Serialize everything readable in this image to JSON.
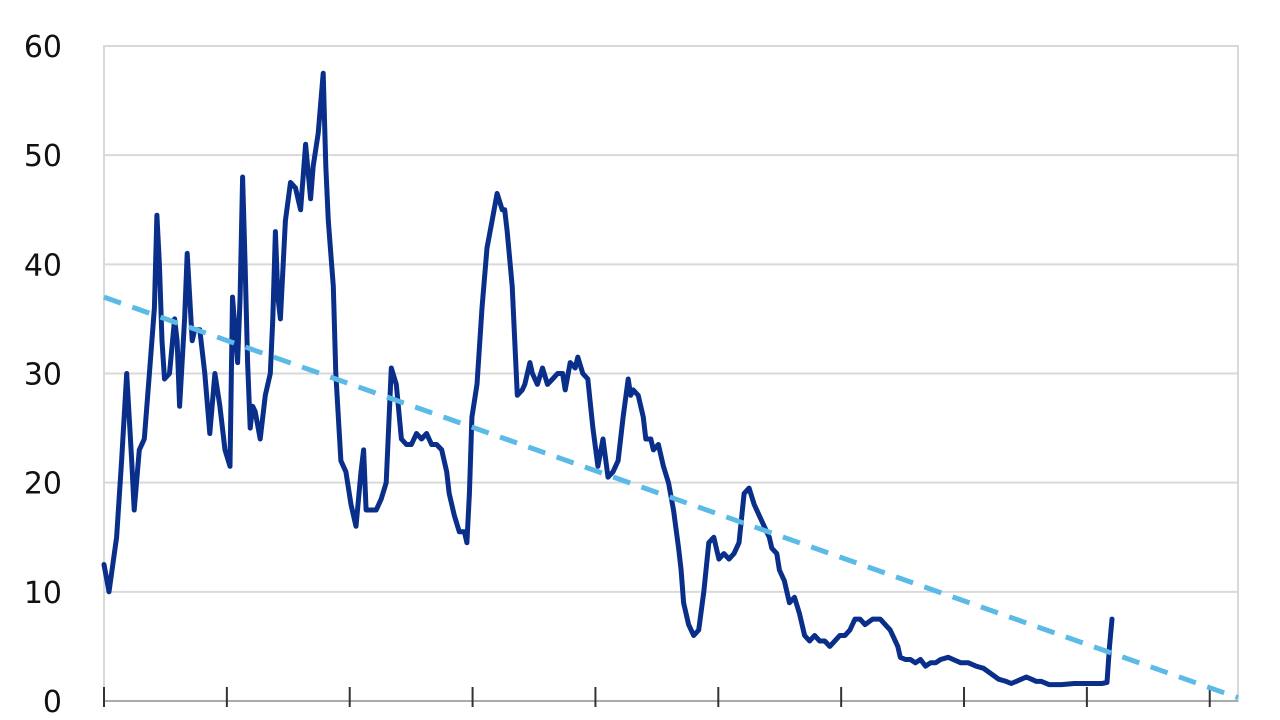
{
  "chart_data": {
    "type": "line",
    "title": "",
    "xlabel": "",
    "ylabel": "",
    "ylim": [
      0,
      60
    ],
    "yticks": [
      0,
      10,
      20,
      30,
      40,
      50,
      60
    ],
    "x_tick_count": 10,
    "grid": "horizontal",
    "legend": "none",
    "x_range": [
      0,
      450
    ],
    "series": [
      {
        "style": "solid",
        "color": "#0a2f8a",
        "points": [
          [
            0,
            12.5
          ],
          [
            2,
            10
          ],
          [
            5,
            15
          ],
          [
            7,
            22
          ],
          [
            9,
            30
          ],
          [
            11,
            22
          ],
          [
            12,
            17.5
          ],
          [
            14,
            23
          ],
          [
            16,
            24
          ],
          [
            18,
            30
          ],
          [
            20,
            36
          ],
          [
            21,
            44.5
          ],
          [
            22,
            40
          ],
          [
            23,
            33
          ],
          [
            24,
            29.5
          ],
          [
            26,
            30
          ],
          [
            28,
            35
          ],
          [
            29,
            33
          ],
          [
            30,
            27
          ],
          [
            32,
            35
          ],
          [
            33,
            41
          ],
          [
            34,
            37
          ],
          [
            35,
            33
          ],
          [
            36,
            34
          ],
          [
            38,
            34
          ],
          [
            40,
            30
          ],
          [
            42,
            24.5
          ],
          [
            44,
            30
          ],
          [
            46,
            27
          ],
          [
            48,
            23
          ],
          [
            50,
            21.5
          ],
          [
            51,
            37
          ],
          [
            53,
            31
          ],
          [
            54,
            37
          ],
          [
            55,
            48
          ],
          [
            56,
            40
          ],
          [
            57,
            31
          ],
          [
            58,
            25
          ],
          [
            59,
            27
          ],
          [
            60,
            26.5
          ],
          [
            62,
            24
          ],
          [
            64,
            28
          ],
          [
            66,
            30
          ],
          [
            67,
            35
          ],
          [
            68,
            43
          ],
          [
            69,
            37
          ],
          [
            70,
            35
          ],
          [
            72,
            44
          ],
          [
            74,
            47.5
          ],
          [
            76,
            47
          ],
          [
            78,
            45
          ],
          [
            80,
            51
          ],
          [
            82,
            46
          ],
          [
            83,
            49
          ],
          [
            85,
            52
          ],
          [
            87,
            57.5
          ],
          [
            88,
            49
          ],
          [
            89,
            44
          ],
          [
            91,
            38
          ],
          [
            92,
            30
          ],
          [
            94,
            22
          ],
          [
            96,
            21
          ],
          [
            98,
            18
          ],
          [
            100,
            16
          ],
          [
            102,
            21
          ],
          [
            103,
            23
          ],
          [
            104,
            17.5
          ],
          [
            106,
            17.5
          ],
          [
            108,
            17.5
          ],
          [
            110,
            18.5
          ],
          [
            112,
            20
          ],
          [
            114,
            30.5
          ],
          [
            116,
            29
          ],
          [
            118,
            24
          ],
          [
            120,
            23.5
          ],
          [
            122,
            23.5
          ],
          [
            124,
            24.5
          ],
          [
            126,
            24
          ],
          [
            128,
            24.5
          ],
          [
            130,
            23.5
          ],
          [
            132,
            23.5
          ],
          [
            134,
            23
          ],
          [
            136,
            21
          ],
          [
            137,
            19
          ],
          [
            139,
            17
          ],
          [
            141,
            15.5
          ],
          [
            143,
            15.5
          ],
          [
            144,
            14.5
          ],
          [
            145,
            19
          ],
          [
            146,
            26
          ],
          [
            148,
            29
          ],
          [
            150,
            36
          ],
          [
            152,
            41.5
          ],
          [
            154,
            44
          ],
          [
            156,
            46.5
          ],
          [
            158,
            45
          ],
          [
            159,
            45
          ],
          [
            160,
            43
          ],
          [
            162,
            38
          ],
          [
            164,
            28
          ],
          [
            166,
            28.5
          ],
          [
            167,
            29
          ],
          [
            169,
            31
          ],
          [
            170,
            30
          ],
          [
            172,
            29
          ],
          [
            174,
            30.5
          ],
          [
            176,
            29
          ],
          [
            178,
            29.5
          ],
          [
            180,
            30
          ],
          [
            182,
            30
          ],
          [
            183,
            28.5
          ],
          [
            185,
            31
          ],
          [
            187,
            30.5
          ],
          [
            188,
            31.5
          ],
          [
            190,
            30
          ],
          [
            192,
            29.5
          ],
          [
            194,
            25
          ],
          [
            196,
            21.5
          ],
          [
            198,
            24
          ],
          [
            200,
            20.5
          ],
          [
            202,
            21
          ],
          [
            204,
            22
          ],
          [
            206,
            26
          ],
          [
            208,
            29.5
          ],
          [
            209,
            28
          ],
          [
            210,
            28.5
          ],
          [
            212,
            28
          ],
          [
            214,
            26
          ],
          [
            215,
            24
          ],
          [
            217,
            24
          ],
          [
            218,
            23
          ],
          [
            220,
            23.5
          ],
          [
            222,
            21.5
          ],
          [
            224,
            20
          ],
          [
            226,
            17.5
          ],
          [
            228,
            14
          ],
          [
            229,
            12
          ],
          [
            230,
            9
          ],
          [
            232,
            7
          ],
          [
            234,
            6
          ],
          [
            236,
            6.5
          ],
          [
            238,
            10
          ],
          [
            240,
            14.5
          ],
          [
            242,
            15
          ],
          [
            244,
            13
          ],
          [
            246,
            13.5
          ],
          [
            248,
            13
          ],
          [
            250,
            13.5
          ],
          [
            252,
            14.5
          ],
          [
            254,
            19
          ],
          [
            256,
            19.5
          ],
          [
            258,
            18
          ],
          [
            260,
            17
          ],
          [
            262,
            16
          ],
          [
            264,
            15
          ],
          [
            265,
            14
          ],
          [
            267,
            13.5
          ],
          [
            268,
            12
          ],
          [
            270,
            11
          ],
          [
            272,
            9
          ],
          [
            274,
            9.5
          ],
          [
            276,
            8
          ],
          [
            278,
            6
          ],
          [
            280,
            5.5
          ],
          [
            282,
            6
          ],
          [
            284,
            5.5
          ],
          [
            286,
            5.5
          ],
          [
            288,
            5
          ],
          [
            290,
            5.5
          ],
          [
            292,
            6
          ],
          [
            294,
            6
          ],
          [
            296,
            6.5
          ],
          [
            298,
            7.5
          ],
          [
            300,
            7.5
          ],
          [
            302,
            7
          ],
          [
            305,
            7.5
          ],
          [
            308,
            7.5
          ],
          [
            310,
            7
          ],
          [
            312,
            6.5
          ],
          [
            315,
            5
          ],
          [
            316,
            4
          ],
          [
            318,
            3.8
          ],
          [
            320,
            3.8
          ],
          [
            322,
            3.5
          ],
          [
            324,
            3.8
          ],
          [
            326,
            3.2
          ],
          [
            328,
            3.5
          ],
          [
            330,
            3.5
          ],
          [
            332,
            3.8
          ],
          [
            335,
            4
          ],
          [
            337,
            3.8
          ],
          [
            340,
            3.5
          ],
          [
            343,
            3.5
          ],
          [
            346,
            3.2
          ],
          [
            349,
            3
          ],
          [
            352,
            2.5
          ],
          [
            355,
            2
          ],
          [
            358,
            1.8
          ],
          [
            360,
            1.6
          ],
          [
            362,
            1.8
          ],
          [
            364,
            2
          ],
          [
            366,
            2.2
          ],
          [
            368,
            2
          ],
          [
            370,
            1.8
          ],
          [
            372,
            1.8
          ],
          [
            375,
            1.5
          ],
          [
            378,
            1.5
          ],
          [
            380,
            1.5
          ],
          [
            385,
            1.6
          ],
          [
            390,
            1.6
          ],
          [
            396,
            1.6
          ],
          [
            398,
            1.7
          ],
          [
            399,
            5
          ],
          [
            400,
            7.5
          ]
        ]
      },
      {
        "style": "dashed",
        "color": "#5bbbe6",
        "points": [
          [
            0,
            37
          ],
          [
            450,
            0.3
          ]
        ]
      }
    ]
  }
}
